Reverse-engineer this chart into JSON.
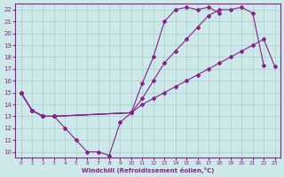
{
  "xlabel": "Windchill (Refroidissement éolien,°C)",
  "bg_color": "#cce8e8",
  "grid_color": "#aacccc",
  "line_color": "#882288",
  "xlim": [
    -0.5,
    23.5
  ],
  "ylim": [
    9.5,
    22.5
  ],
  "xticks": [
    0,
    1,
    2,
    3,
    4,
    5,
    6,
    7,
    8,
    9,
    10,
    11,
    12,
    13,
    14,
    15,
    16,
    17,
    18,
    19,
    20,
    21,
    22,
    23
  ],
  "yticks": [
    10,
    11,
    12,
    13,
    14,
    15,
    16,
    17,
    18,
    19,
    20,
    21,
    22
  ],
  "s1_x": [
    0,
    1,
    2,
    3,
    4,
    5,
    6,
    7,
    8,
    9,
    10
  ],
  "s1_y": [
    15,
    13.5,
    13,
    13,
    12,
    11,
    10,
    10,
    9.7,
    12.5,
    13.3
  ],
  "s2_x": [
    0,
    1,
    2,
    3,
    10,
    11,
    12,
    13,
    14,
    15,
    16,
    17,
    18
  ],
  "s2_y": [
    15,
    13.5,
    13,
    13,
    13.3,
    15.8,
    18,
    21,
    22,
    22.2,
    22,
    22.2,
    21.7
  ],
  "s3_x": [
    0,
    1,
    2,
    3,
    10,
    11,
    12,
    13,
    14,
    15,
    16,
    17,
    18,
    19,
    20,
    21,
    22
  ],
  "s3_y": [
    15,
    13.5,
    13,
    13,
    13.3,
    14.5,
    16,
    17.5,
    18.5,
    19.5,
    20.5,
    21.5,
    22,
    22,
    22.2,
    21.7,
    17.3
  ],
  "s4_x": [
    0,
    1,
    2,
    3,
    10,
    11,
    12,
    13,
    14,
    15,
    16,
    17,
    18,
    19,
    20,
    21,
    22,
    23
  ],
  "s4_y": [
    15,
    13.5,
    13,
    13,
    13.3,
    14,
    14.5,
    15,
    15.5,
    16,
    16.5,
    17,
    17.5,
    18,
    18.5,
    19,
    19.5,
    17.2
  ]
}
